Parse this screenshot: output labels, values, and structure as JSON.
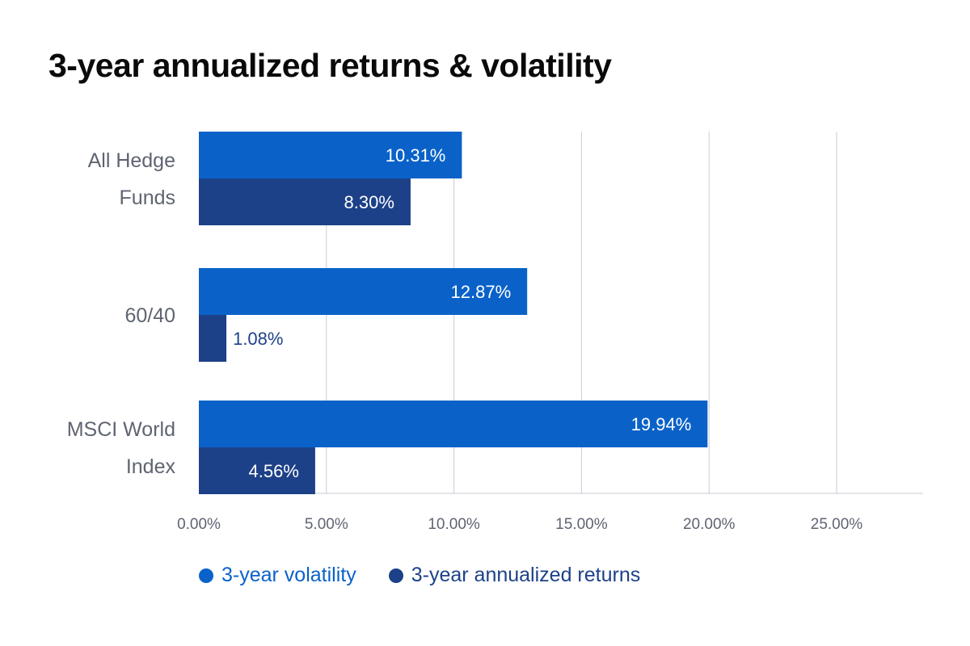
{
  "chart_data": {
    "type": "bar",
    "orientation": "horizontal",
    "title": "3-year annualized returns & volatility",
    "categories": [
      [
        "All Hedge",
        "Funds"
      ],
      [
        "60/40"
      ],
      [
        "MSCI World",
        "Index"
      ]
    ],
    "series": [
      {
        "name": "3-year volatility",
        "color": "#0a62c9",
        "values": [
          10.31,
          12.87,
          19.94
        ],
        "labels": [
          "10.31%",
          "12.87%",
          "19.94%"
        ]
      },
      {
        "name": "3-year annualized returns",
        "color": "#1d4188",
        "values": [
          8.3,
          1.08,
          4.56
        ],
        "labels": [
          "8.30%",
          "1.08%",
          "4.56%"
        ]
      }
    ],
    "xlim": [
      0,
      28
    ],
    "xticks": [
      0,
      5,
      10,
      15,
      20,
      25
    ],
    "xtick_labels": [
      "0.00%",
      "5.00%",
      "10.00%",
      "15.00%",
      "20.00%",
      "25.00%"
    ],
    "grid": "vertical",
    "legend_position": "bottom-left"
  }
}
